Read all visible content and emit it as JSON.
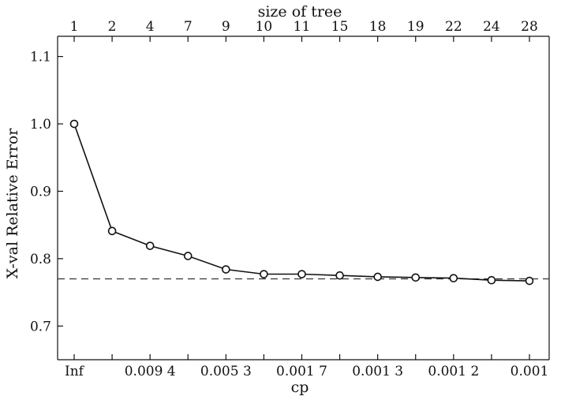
{
  "chart_data": {
    "type": "line",
    "title": "",
    "top_axis_label": "size of tree",
    "xlabel": "cp",
    "ylabel": "X-val Relative Error",
    "top_ticks": [
      "1",
      "2",
      "4",
      "7",
      "9",
      "10",
      "11",
      "15",
      "18",
      "19",
      "22",
      "24",
      "28"
    ],
    "bottom_ticks": [
      "Inf",
      "",
      "0.009 4",
      "",
      "0.005 3",
      "",
      "0.001 7",
      "",
      "0.001 3",
      "",
      "0.001 2",
      "",
      "0.001"
    ],
    "ylim": [
      0.65,
      1.13
    ],
    "yticks": [
      0.7,
      0.8,
      0.9,
      1.0,
      1.1
    ],
    "ytick_labels": [
      "0.7",
      "0.8",
      "0.9",
      "1.0",
      "1.1"
    ],
    "reference_line": 0.77,
    "series": [
      {
        "values": [
          1.0,
          0.841,
          0.819,
          0.804,
          0.784,
          0.777,
          0.777,
          0.775,
          0.773,
          0.772,
          0.771,
          0.768,
          0.767
        ]
      }
    ],
    "grid": false,
    "colors": {
      "line": "#111111",
      "reference": "#333333",
      "axes": "#111111"
    }
  }
}
